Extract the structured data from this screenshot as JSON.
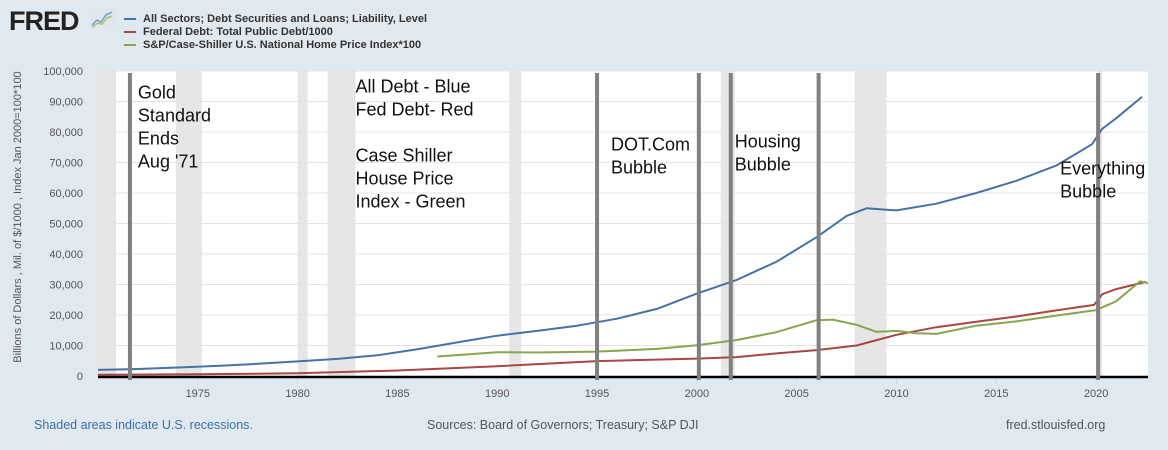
{
  "header": {
    "logo_text": "FRED",
    "logo_icon": "chart-line-icon"
  },
  "footer": {
    "recession_note": "Shaded areas indicate U.S. recessions.",
    "sources": "Sources: Board of Governors; Treasury; S&P DJI",
    "site": "fred.stlouisfed.org"
  },
  "chart_data": {
    "type": "line",
    "title": "",
    "xlabel": "",
    "ylabel": "Billions of Dollars , Mil. of $/1000 , Index Jan 2000=100*100",
    "xlim": [
      1970.0,
      2022.6
    ],
    "ylim": [
      0,
      100000
    ],
    "grid": true,
    "legend_position": "top",
    "x_ticks": [
      1975,
      1980,
      1985,
      1990,
      1995,
      2000,
      2005,
      2010,
      2015,
      2020
    ],
    "x_tick_labels": [
      "1975",
      "1980",
      "1985",
      "1990",
      "1995",
      "2000",
      "2005",
      "2010",
      "2015",
      "2020"
    ],
    "y_ticks": [
      0,
      10000,
      20000,
      30000,
      40000,
      50000,
      60000,
      70000,
      80000,
      90000,
      100000
    ],
    "y_tick_labels": [
      "0",
      "10,000",
      "20,000",
      "30,000",
      "40,000",
      "50,000",
      "60,000",
      "70,000",
      "80,000",
      "90,000",
      "100,000"
    ],
    "series": [
      {
        "name": "All Sectors; Debt Securities and Loans; Liability, Level",
        "color": "#4572a7",
        "x": [
          1970,
          1972,
          1974,
          1976,
          1978,
          1980,
          1982,
          1984,
          1986,
          1988,
          1990,
          1992,
          1994,
          1996,
          1998,
          2000,
          2002,
          2004,
          2006,
          2007.5,
          2008.5,
          2010,
          2012,
          2014,
          2016,
          2018,
          2019.8,
          2020.3,
          2021,
          2022.3
        ],
        "values": [
          2000,
          2300,
          2800,
          3300,
          4000,
          4800,
          5600,
          6800,
          8800,
          11000,
          13200,
          14800,
          16500,
          18800,
          22000,
          27000,
          31500,
          37500,
          45500,
          52500,
          55000,
          54300,
          56500,
          60000,
          64000,
          69000,
          76000,
          81000,
          84500,
          91500
        ]
      },
      {
        "name": "Federal Debt: Total Public Debt/1000",
        "color": "#aa4643",
        "x": [
          1970,
          1975,
          1980,
          1985,
          1990,
          1995,
          2000,
          2002,
          2004,
          2006,
          2008,
          2010,
          2012,
          2014,
          2016,
          2018,
          2019.9,
          2020.3,
          2021,
          2022.5
        ],
        "values": [
          380,
          550,
          900,
          1800,
          3200,
          4900,
          5700,
          6200,
          7400,
          8500,
          10000,
          13500,
          16000,
          17800,
          19500,
          21500,
          23300,
          26800,
          28500,
          30900
        ]
      },
      {
        "name": "S&P/Case-Shiller U.S. National Home Price Index*100",
        "color": "#89a54e",
        "x": [
          1987,
          1990,
          1992,
          1995,
          1998,
          2000,
          2002,
          2004,
          2006,
          2006.8,
          2008,
          2009,
          2010,
          2011,
          2012,
          2014,
          2016,
          2018,
          2020,
          2021,
          2022.2,
          2022.6
        ],
        "values": [
          6400,
          7800,
          7700,
          8000,
          8900,
          10100,
          11800,
          14400,
          18300,
          18500,
          16800,
          14500,
          14800,
          14000,
          13800,
          16500,
          17900,
          19800,
          21600,
          24500,
          31000,
          30500
        ]
      }
    ],
    "recessions": [
      [
        1970.0,
        1970.9
      ],
      [
        1973.9,
        1975.2
      ],
      [
        1980.0,
        1980.5
      ],
      [
        1981.5,
        1982.9
      ],
      [
        1990.6,
        1991.2
      ],
      [
        2001.2,
        2001.9
      ],
      [
        2007.9,
        2009.5
      ],
      [
        2020.1,
        2020.3
      ]
    ],
    "annotation_lines": [
      1971.6,
      1995.0,
      2000.1,
      2001.7,
      2006.1,
      2020.1
    ],
    "annotations": [
      {
        "x": 1972.0,
        "y": 91000,
        "lines": [
          "Gold",
          "Standard",
          "Ends",
          "Aug '71"
        ]
      },
      {
        "x": 1982.9,
        "y": 93000,
        "lines": [
          "All Debt - Blue",
          "Fed Debt- Red",
          "",
          "Case Shiller",
          "House Price",
          "Index - Green"
        ]
      },
      {
        "x": 1995.7,
        "y": 74000,
        "lines": [
          "DOT.Com",
          "Bubble"
        ]
      },
      {
        "x": 2001.9,
        "y": 75000,
        "lines": [
          "Housing",
          "Bubble"
        ]
      },
      {
        "x": 2018.2,
        "y": 66000,
        "lines": [
          "Everything",
          "Bubble"
        ]
      }
    ]
  }
}
